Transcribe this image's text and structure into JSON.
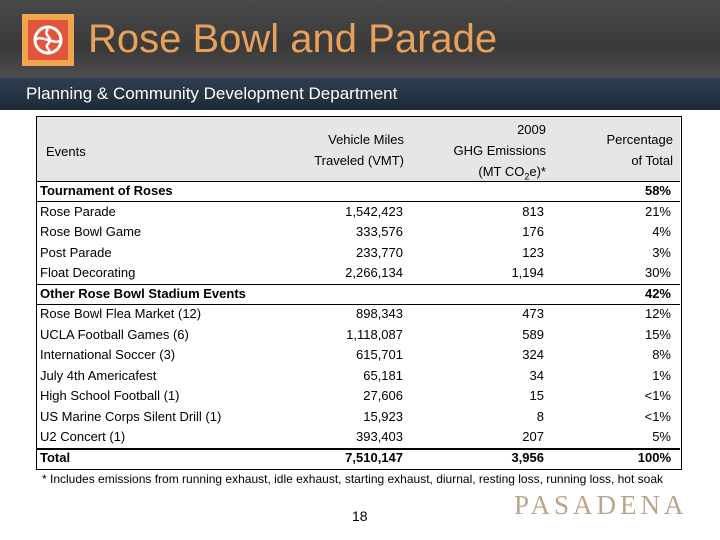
{
  "header": {
    "title": "Rose Bowl and Parade",
    "subtitle": "Planning & Community Development Department"
  },
  "table": {
    "columns": {
      "events": "Events",
      "vmt_line1": "Vehicle Miles",
      "vmt_line2": "Traveled (VMT)",
      "ghg_line1": "2009",
      "ghg_line2": "GHG Emissions",
      "ghg_line3_pre": "(MT CO",
      "ghg_line3_sub": "2",
      "ghg_line3_post": "e)*",
      "pct_line1": "Percentage",
      "pct_line2": "of Total"
    },
    "rows": [
      {
        "name": "Tournament of Roses",
        "vmt": "",
        "ghg": "",
        "pct": "58%",
        "kind": "group"
      },
      {
        "name": "Rose Parade",
        "vmt": "1,542,423",
        "ghg": "813",
        "pct": "21%",
        "kind": "item"
      },
      {
        "name": "Rose Bowl Game",
        "vmt": "333,576",
        "ghg": "176",
        "pct": "4%",
        "kind": "item"
      },
      {
        "name": "Post Parade",
        "vmt": "233,770",
        "ghg": "123",
        "pct": "3%",
        "kind": "item"
      },
      {
        "name": "Float Decorating",
        "vmt": "2,266,134",
        "ghg": "1,194",
        "pct": "30%",
        "kind": "item"
      },
      {
        "name": "Other Rose Bowl Stadium Events",
        "vmt": "",
        "ghg": "",
        "pct": "42%",
        "kind": "group"
      },
      {
        "name": "Rose Bowl Flea Market (12)",
        "vmt": "898,343",
        "ghg": "473",
        "pct": "12%",
        "kind": "item"
      },
      {
        "name": "UCLA Football Games (6)",
        "vmt": "1,118,087",
        "ghg": "589",
        "pct": "15%",
        "kind": "item"
      },
      {
        "name": "International Soccer (3)",
        "vmt": "615,701",
        "ghg": "324",
        "pct": "8%",
        "kind": "item"
      },
      {
        "name": "July 4th Americafest",
        "vmt": "65,181",
        "ghg": "34",
        "pct": "1%",
        "kind": "item"
      },
      {
        "name": "High School Football (1)",
        "vmt": "27,606",
        "ghg": "15",
        "pct": "<1%",
        "kind": "item"
      },
      {
        "name": "US Marine Corps Silent Drill (1)",
        "vmt": "15,923",
        "ghg": "8",
        "pct": "<1%",
        "kind": "item"
      },
      {
        "name": "U2 Concert (1)",
        "vmt": "393,403",
        "ghg": "207",
        "pct": "5%",
        "kind": "item"
      },
      {
        "name": "Total",
        "vmt": "7,510,147",
        "ghg": "3,956",
        "pct": "100%",
        "kind": "total"
      }
    ]
  },
  "footnote": "* Includes emissions from running exhaust, idle exhaust, starting exhaust, diurnal, resting loss, running loss, hot soak",
  "page_number": "18",
  "brand": "PASADENA",
  "colors": {
    "title": "#e8a15b",
    "header_bg": "#404040",
    "subbar_bg": "#26333f",
    "brand": "#bba58a",
    "table_header_shade": "#e6e6e6"
  }
}
